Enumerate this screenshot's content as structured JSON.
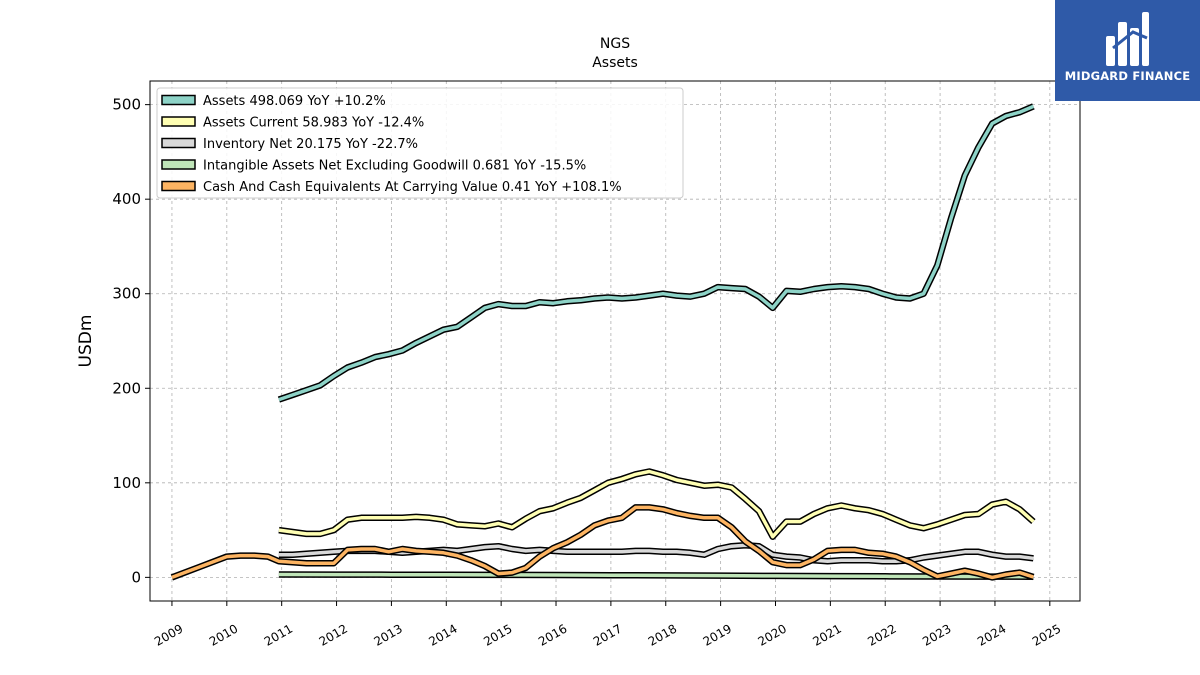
{
  "chart_data": {
    "type": "line",
    "title": "NGS",
    "subtitle": "Assets",
    "xlabel": "",
    "ylabel": "USDm",
    "xlim": [
      2008.6,
      2025.55
    ],
    "ylim": [
      -25,
      525
    ],
    "yticks": [
      0,
      100,
      200,
      300,
      400,
      500
    ],
    "xticks": [
      2009,
      2010,
      2011,
      2012,
      2013,
      2014,
      2015,
      2016,
      2017,
      2018,
      2019,
      2020,
      2021,
      2022,
      2023,
      2024,
      2025
    ],
    "grid": true,
    "legend_position": "top-left",
    "series": [
      {
        "name": "Assets  498.069 YoY +10.2%",
        "color": "#8dd3c7",
        "x": [
          2010.95,
          2011.2,
          2011.45,
          2011.7,
          2011.95,
          2012.2,
          2012.45,
          2012.7,
          2012.95,
          2013.2,
          2013.45,
          2013.7,
          2013.95,
          2014.2,
          2014.45,
          2014.7,
          2014.95,
          2015.2,
          2015.45,
          2015.7,
          2015.95,
          2016.2,
          2016.45,
          2016.7,
          2016.95,
          2017.2,
          2017.45,
          2017.7,
          2017.95,
          2018.2,
          2018.45,
          2018.7,
          2018.95,
          2019.2,
          2019.45,
          2019.7,
          2019.95,
          2020.2,
          2020.45,
          2020.7,
          2020.95,
          2021.2,
          2021.45,
          2021.7,
          2021.95,
          2022.2,
          2022.45,
          2022.7,
          2022.95,
          2023.2,
          2023.45,
          2023.7,
          2023.95,
          2024.2,
          2024.45,
          2024.7
        ],
        "values": [
          188,
          193,
          198,
          203,
          213,
          222,
          227,
          233,
          236,
          240,
          248,
          255,
          262,
          265,
          275,
          285,
          289,
          287,
          287,
          291,
          290,
          292,
          293,
          295,
          296,
          295,
          296,
          298,
          300,
          298,
          297,
          300,
          307,
          306,
          305,
          297,
          285,
          303,
          302,
          305,
          307,
          308,
          307,
          305,
          300,
          296,
          295,
          300,
          330,
          380,
          425,
          455,
          480,
          488,
          492,
          498.1
        ]
      },
      {
        "name": "Assets Current  58.983 YoY -12.4%",
        "color": "#ffffb3",
        "x": [
          2010.95,
          2011.2,
          2011.45,
          2011.7,
          2011.95,
          2012.2,
          2012.45,
          2012.7,
          2012.95,
          2013.2,
          2013.45,
          2013.7,
          2013.95,
          2014.2,
          2014.45,
          2014.7,
          2014.95,
          2015.2,
          2015.45,
          2015.7,
          2015.95,
          2016.2,
          2016.45,
          2016.7,
          2016.95,
          2017.2,
          2017.45,
          2017.7,
          2017.95,
          2018.2,
          2018.45,
          2018.7,
          2018.95,
          2019.2,
          2019.45,
          2019.7,
          2019.95,
          2020.2,
          2020.45,
          2020.7,
          2020.95,
          2021.2,
          2021.45,
          2021.7,
          2021.95,
          2022.2,
          2022.45,
          2022.7,
          2022.95,
          2023.2,
          2023.45,
          2023.7,
          2023.95,
          2024.2,
          2024.45,
          2024.7
        ],
        "values": [
          50,
          48,
          46,
          46,
          50,
          61,
          63,
          63,
          63,
          63,
          64,
          63,
          61,
          56,
          55,
          54,
          57,
          53,
          62,
          70,
          73,
          79,
          84,
          92,
          100,
          104,
          109,
          112,
          108,
          103,
          100,
          97,
          98,
          95,
          83,
          70,
          43,
          59,
          59,
          67,
          73,
          76,
          73,
          71,
          67,
          61,
          55,
          52,
          56,
          61,
          66,
          67,
          77,
          80,
          72,
          59
        ]
      },
      {
        "name": "Inventory Net  20.175 YoY -22.7%",
        "color": "#d9d9d9",
        "x": [
          2010.95,
          2011.2,
          2011.45,
          2011.7,
          2011.95,
          2012.2,
          2012.45,
          2012.7,
          2012.95,
          2013.2,
          2013.45,
          2013.7,
          2013.95,
          2014.2,
          2014.45,
          2014.7,
          2014.95,
          2015.2,
          2015.45,
          2015.7,
          2015.95,
          2016.2,
          2016.45,
          2016.7,
          2016.95,
          2017.2,
          2017.45,
          2017.7,
          2017.95,
          2018.2,
          2018.45,
          2018.7,
          2018.95,
          2019.2,
          2019.45,
          2019.7,
          2019.95,
          2020.2,
          2020.45,
          2020.7,
          2020.95,
          2021.2,
          2021.45,
          2021.7,
          2021.95,
          2022.2,
          2022.45,
          2022.7,
          2022.95,
          2023.2,
          2023.45,
          2023.7,
          2023.95,
          2024.2,
          2024.45,
          2024.7
        ],
        "values": [
          24,
          24,
          25,
          26,
          27,
          28,
          28,
          28,
          27,
          26,
          27,
          28,
          29,
          28,
          30,
          32,
          33,
          30,
          28,
          29,
          28,
          27,
          27,
          27,
          27,
          27,
          28,
          28,
          27,
          27,
          26,
          24,
          30,
          33,
          34,
          33,
          24,
          22,
          21,
          18,
          17,
          18,
          18,
          18,
          17,
          17,
          18,
          21,
          23,
          25,
          27,
          27,
          24,
          22,
          22,
          20.2
        ]
      },
      {
        "name": "Intangible Assets Net Excluding Goodwill  0.681 YoY -15.5%",
        "color": "#bfe5b8",
        "x": [
          2010.95,
          2012.0,
          2013.0,
          2014.0,
          2015.0,
          2016.0,
          2017.0,
          2018.0,
          2019.0,
          2020.0,
          2021.0,
          2022.0,
          2023.0,
          2024.0,
          2024.7
        ],
        "values": [
          3,
          2.9,
          2.8,
          2.7,
          2.6,
          2.5,
          2.3,
          2.1,
          1.9,
          1.6,
          1.3,
          1.1,
          0.9,
          0.8,
          0.681
        ]
      },
      {
        "name": "Cash And Cash Equivalents At Carrying Value  0.41 YoY +108.1%",
        "color": "#fdb462",
        "x": [
          2009.0,
          2009.5,
          2010.0,
          2010.25,
          2010.5,
          2010.75,
          2010.95,
          2011.2,
          2011.45,
          2011.7,
          2011.95,
          2012.2,
          2012.45,
          2012.7,
          2012.95,
          2013.2,
          2013.45,
          2013.7,
          2013.95,
          2014.2,
          2014.45,
          2014.7,
          2014.95,
          2015.2,
          2015.45,
          2015.7,
          2015.95,
          2016.2,
          2016.45,
          2016.7,
          2016.95,
          2017.2,
          2017.45,
          2017.7,
          2017.95,
          2018.2,
          2018.45,
          2018.7,
          2018.95,
          2019.2,
          2019.45,
          2019.7,
          2019.95,
          2020.2,
          2020.45,
          2020.7,
          2020.95,
          2021.2,
          2021.45,
          2021.7,
          2021.95,
          2022.2,
          2022.45,
          2022.7,
          2022.95,
          2023.2,
          2023.45,
          2023.7,
          2023.95,
          2024.2,
          2024.45,
          2024.7
        ],
        "values": [
          0,
          11,
          22,
          23,
          23,
          22,
          17,
          16,
          15,
          15,
          15,
          29,
          30,
          30,
          27,
          30,
          28,
          27,
          26,
          23,
          18,
          12,
          4,
          5,
          10,
          22,
          31,
          37,
          45,
          55,
          60,
          63,
          74,
          74,
          72,
          68,
          65,
          63,
          63,
          53,
          38,
          28,
          16,
          13,
          13,
          19,
          28,
          29,
          29,
          26,
          25,
          22,
          16,
          8,
          1,
          4,
          7,
          4,
          0,
          3,
          5,
          0.41
        ]
      }
    ]
  },
  "logo": {
    "brand": "MIDGARD FINANCE"
  }
}
